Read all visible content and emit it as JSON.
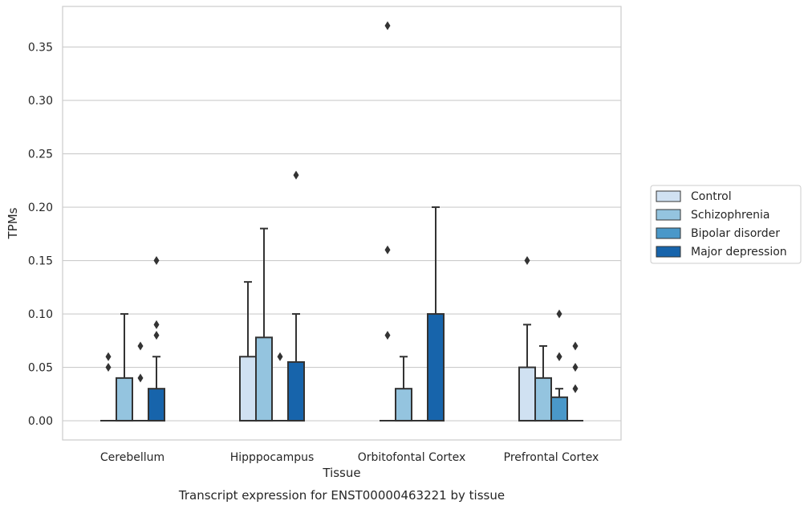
{
  "chart_data": {
    "type": "box",
    "xlabel": "Tissue",
    "ylabel": "TPMs",
    "caption": "Transcript expression for ENST00000463221 by tissue",
    "ylim": [
      -0.018,
      0.388
    ],
    "yticks": [
      0.0,
      0.05,
      0.1,
      0.15,
      0.2,
      0.25,
      0.3,
      0.35
    ],
    "ytick_labels": [
      "0.00",
      "0.05",
      "0.10",
      "0.15",
      "0.20",
      "0.25",
      "0.30",
      "0.35"
    ],
    "grid": "horizontal",
    "legend_position": "right",
    "categories": [
      "Cerebellum",
      "Hipppocampus",
      "Orbitofontal Cortex",
      "Prefrontal Cortex"
    ],
    "series": [
      {
        "name": "Control",
        "color": "#d0e1f2",
        "boxes": [
          {
            "whisker_low": 0,
            "q1": 0,
            "median": 0,
            "q3": 0,
            "whisker_high": 0,
            "outliers": [
              0.05,
              0.06
            ]
          },
          {
            "whisker_low": 0,
            "q1": 0,
            "median": 0,
            "q3": 0.06,
            "whisker_high": 0.13,
            "outliers": []
          },
          {
            "whisker_low": 0,
            "q1": 0,
            "median": 0,
            "q3": 0,
            "whisker_high": 0,
            "outliers": [
              0.08,
              0.16,
              0.37
            ]
          },
          {
            "whisker_low": 0,
            "q1": 0,
            "median": 0,
            "q3": 0.05,
            "whisker_high": 0.09,
            "outliers": [
              0.15
            ]
          }
        ]
      },
      {
        "name": "Schizophrenia",
        "color": "#94c4df",
        "boxes": [
          {
            "whisker_low": 0,
            "q1": 0,
            "median": 0,
            "q3": 0.04,
            "whisker_high": 0.1,
            "outliers": []
          },
          {
            "whisker_low": 0,
            "q1": 0,
            "median": 0,
            "q3": 0.078,
            "whisker_high": 0.18,
            "outliers": []
          },
          {
            "whisker_low": 0,
            "q1": 0,
            "median": 0,
            "q3": 0.03,
            "whisker_high": 0.06,
            "outliers": []
          },
          {
            "whisker_low": 0,
            "q1": 0,
            "median": 0,
            "q3": 0.04,
            "whisker_high": 0.07,
            "outliers": []
          }
        ]
      },
      {
        "name": "Bipolar disorder",
        "color": "#4a98c9",
        "boxes": [
          {
            "whisker_low": 0,
            "q1": 0,
            "median": 0,
            "q3": 0,
            "whisker_high": 0,
            "outliers": [
              0.04,
              0.07
            ]
          },
          {
            "whisker_low": 0,
            "q1": 0,
            "median": 0,
            "q3": 0,
            "whisker_high": 0,
            "outliers": [
              0.06
            ]
          },
          {
            "whisker_low": 0,
            "q1": 0,
            "median": 0,
            "q3": 0,
            "whisker_high": 0,
            "outliers": []
          },
          {
            "whisker_low": 0,
            "q1": 0,
            "median": 0,
            "q3": 0.022,
            "whisker_high": 0.03,
            "outliers": [
              0.06,
              0.06,
              0.1
            ]
          }
        ]
      },
      {
        "name": "Major depression",
        "color": "#1764ab",
        "boxes": [
          {
            "whisker_low": 0,
            "q1": 0,
            "median": 0,
            "q3": 0.03,
            "whisker_high": 0.06,
            "outliers": [
              0.08,
              0.09,
              0.15
            ]
          },
          {
            "whisker_low": 0,
            "q1": 0,
            "median": 0,
            "q3": 0.055,
            "whisker_high": 0.1,
            "outliers": [
              0.23
            ]
          },
          {
            "whisker_low": 0,
            "q1": 0,
            "median": 0,
            "q3": 0.1,
            "whisker_high": 0.2,
            "outliers": []
          },
          {
            "whisker_low": 0,
            "q1": 0,
            "median": 0,
            "q3": 0,
            "whisker_high": 0,
            "outliers": [
              0.03,
              0.05,
              0.07
            ]
          }
        ]
      }
    ]
  }
}
